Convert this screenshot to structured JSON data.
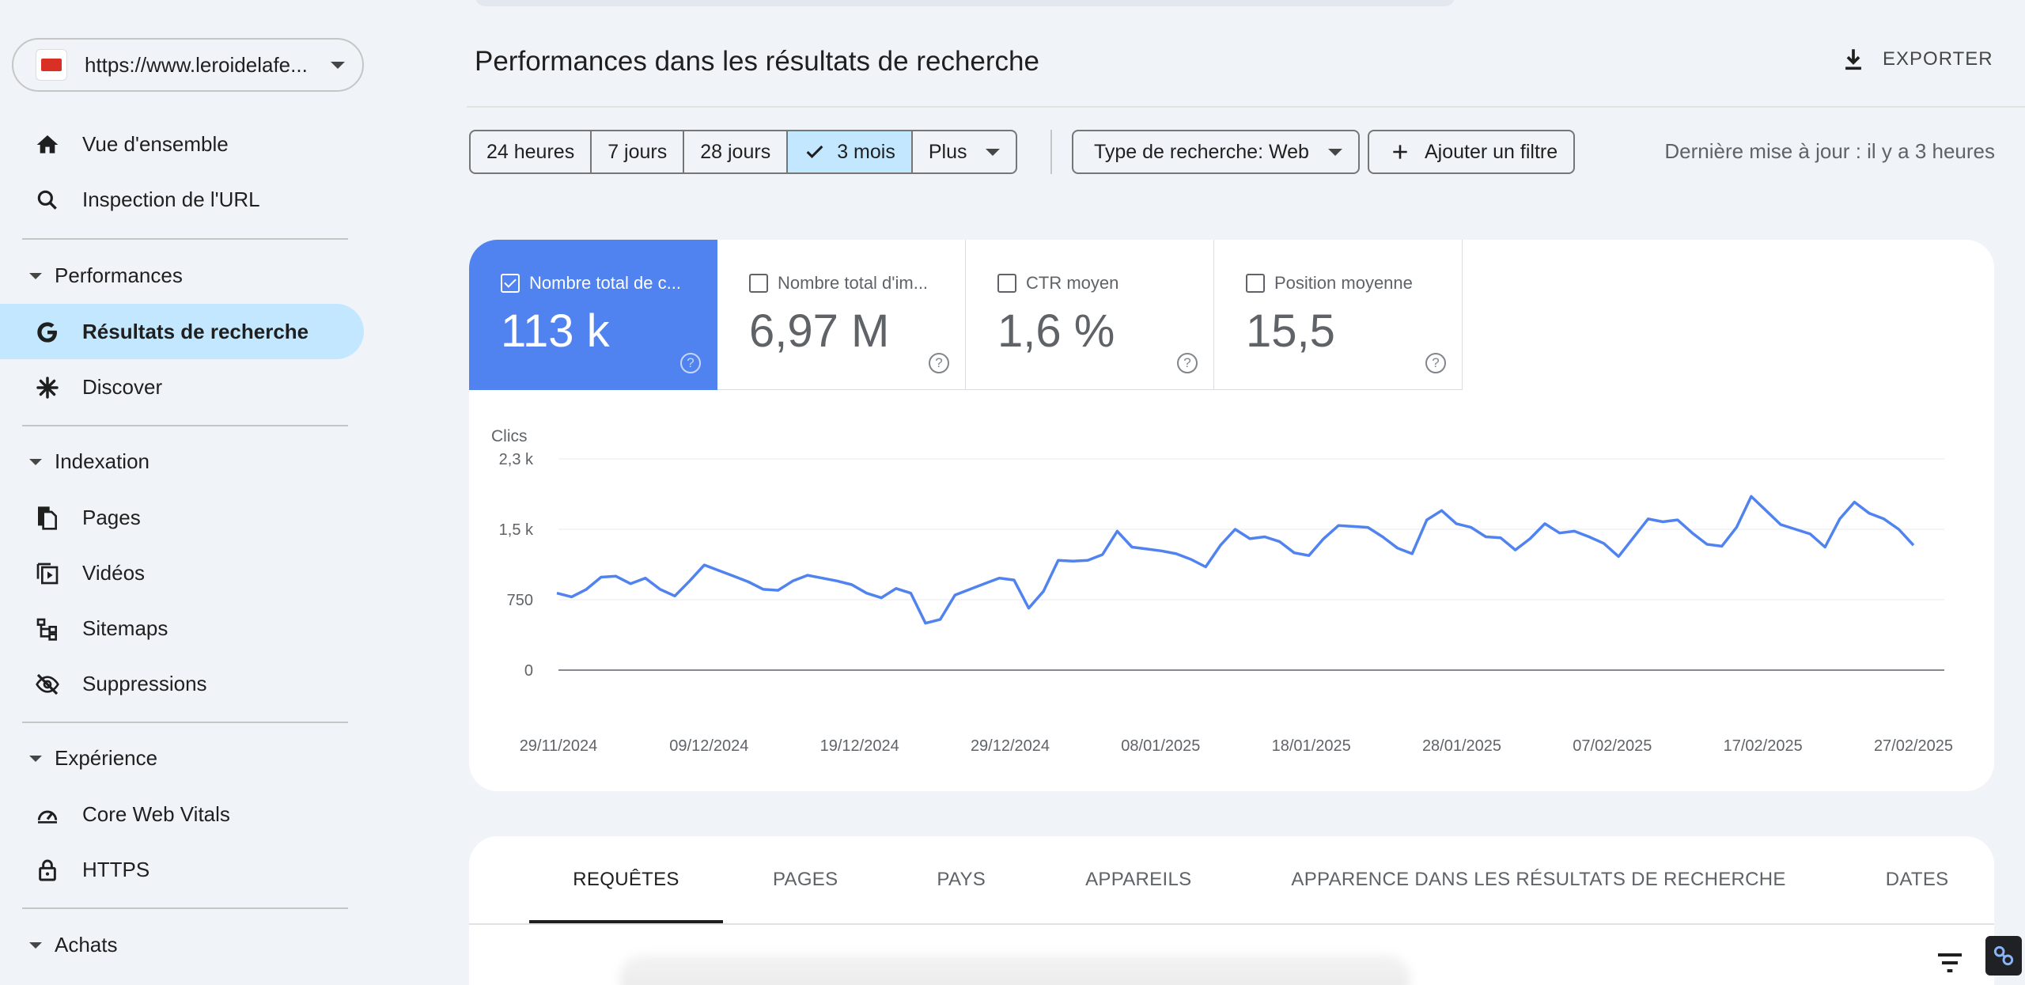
{
  "property": {
    "url": "https://www.leroidelafe..."
  },
  "nav": {
    "overview": "Vue d'ensemble",
    "url_inspection": "Inspection de l'URL",
    "sections": {
      "performance": "Performances",
      "indexing": "Indexation",
      "experience": "Expérience",
      "shopping": "Achats"
    },
    "search_results": "Résultats de recherche",
    "discover": "Discover",
    "pages": "Pages",
    "videos": "Vidéos",
    "sitemaps": "Sitemaps",
    "removals": "Suppressions",
    "core_web_vitals": "Core Web Vitals",
    "https": "HTTPS"
  },
  "header": {
    "title": "Performances dans les résultats de recherche",
    "export": "EXPORTER"
  },
  "filters": {
    "ranges": [
      "24 heures",
      "7 jours",
      "28 jours",
      "3 mois",
      "Plus"
    ],
    "selected_range": "3 mois",
    "search_type": "Type de recherche: Web",
    "add_filter": "Ajouter un filtre",
    "last_update": "Dernière mise à jour : il y a 3 heures"
  },
  "metrics": [
    {
      "label": "Nombre total de c...",
      "value": "113 k",
      "checked": true
    },
    {
      "label": "Nombre total d'im...",
      "value": "6,97 M",
      "checked": false
    },
    {
      "label": "CTR moyen",
      "value": "1,6 %",
      "checked": false
    },
    {
      "label": "Position moyenne",
      "value": "15,5",
      "checked": false
    }
  ],
  "chart_data": {
    "type": "line",
    "ylabel": "Clics",
    "yticks": [
      {
        "value": 0,
        "label": "0"
      },
      {
        "value": 750,
        "label": "750"
      },
      {
        "value": 1500,
        "label": "1,5 k"
      },
      {
        "value": 2250,
        "label": "2,3 k"
      }
    ],
    "ylim": [
      0,
      2250
    ],
    "xticks": [
      "29/11/2024",
      "09/12/2024",
      "19/12/2024",
      "29/12/2024",
      "08/01/2025",
      "18/01/2025",
      "28/01/2025",
      "07/02/2025",
      "17/02/2025",
      "27/02/2025"
    ],
    "series": [
      {
        "color": "#5083ef",
        "values": [
          820,
          780,
          860,
          990,
          1000,
          920,
          980,
          860,
          790,
          950,
          1120,
          1060,
          1000,
          940,
          860,
          850,
          950,
          1010,
          980,
          950,
          910,
          820,
          770,
          870,
          820,
          500,
          540,
          800,
          860,
          920,
          980,
          960,
          660,
          840,
          1170,
          1160,
          1170,
          1230,
          1480,
          1310,
          1290,
          1270,
          1240,
          1180,
          1100,
          1330,
          1500,
          1400,
          1420,
          1370,
          1250,
          1220,
          1400,
          1540,
          1530,
          1520,
          1420,
          1300,
          1240,
          1600,
          1700,
          1560,
          1520,
          1420,
          1410,
          1280,
          1400,
          1560,
          1460,
          1480,
          1420,
          1350,
          1210,
          1410,
          1610,
          1580,
          1600,
          1460,
          1340,
          1320,
          1520,
          1850,
          1700,
          1550,
          1500,
          1450,
          1310,
          1610,
          1790,
          1670,
          1610,
          1500,
          1330
        ]
      }
    ]
  },
  "tabs": [
    "REQUÊTES",
    "PAGES",
    "PAYS",
    "APPAREILS",
    "APPARENCE DANS LES RÉSULTATS DE RECHERCHE",
    "DATES"
  ]
}
